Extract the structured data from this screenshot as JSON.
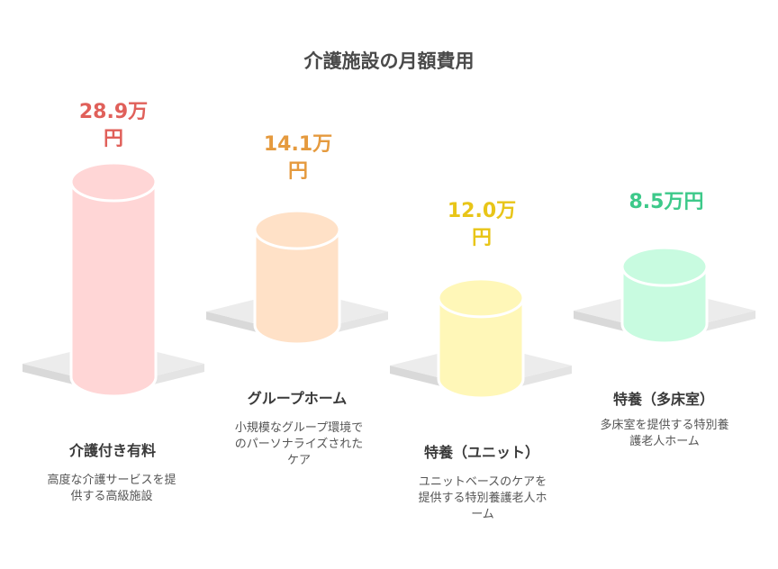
{
  "chart_data": {
    "type": "bar",
    "title": "介護施設の月額費用",
    "unit": "万円",
    "categories": [
      "介護付き有料",
      "グループホーム",
      "特養（ユニット）",
      "特養（多床室）"
    ],
    "values": [
      28.9,
      14.1,
      12.0,
      8.5
    ],
    "value_labels": [
      "28.9万円",
      "14.1万円",
      "12.0万円",
      "8.5万円"
    ],
    "descriptions": [
      "高度な介護サービスを提供する高級施設",
      "小規模なグループ環境でのパーソナライズされたケア",
      "ユニットベースのケアを提供する特別養護老人ホーム",
      "多床室を提供する特別養護老人ホーム"
    ],
    "colors": {
      "bar_fills": [
        "#ffd6d6",
        "#ffe1c7",
        "#fff7b8",
        "#c8fbe0"
      ],
      "label_colors": [
        "#e0605a",
        "#e59a3e",
        "#e8c518",
        "#3dc98a"
      ],
      "platform": "#ececec"
    }
  }
}
